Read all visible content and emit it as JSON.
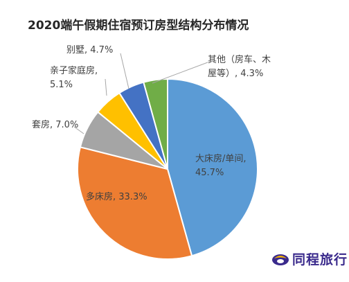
{
  "chart_data": {
    "type": "pie",
    "title": "2020端午假期住宿预订房型结构分布情况",
    "slices": [
      {
        "label": "大床房/单间",
        "value": 45.7,
        "label_lines": [
          "大床房/单间,",
          "45.7%"
        ],
        "color": "#5b9bd5"
      },
      {
        "label": "多床房",
        "value": 33.3,
        "label_lines": [
          "多床房, 33.3%"
        ],
        "color": "#ed7d31"
      },
      {
        "label": "套房",
        "value": 7.0,
        "label_lines": [
          "套房, 7.0%"
        ],
        "color": "#a5a5a5"
      },
      {
        "label": "亲子家庭房",
        "value": 5.1,
        "label_lines": [
          "亲子家庭房,",
          "5.1%"
        ],
        "color": "#ffc000"
      },
      {
        "label": "别墅",
        "value": 4.7,
        "label_lines": [
          "别墅, 4.7%"
        ],
        "color": "#4472c4"
      },
      {
        "label": "其他（房车、木屋等）",
        "value": 4.3,
        "label_lines": [
          "其他（房车、木",
          "屋等）, 4.3%"
        ],
        "color": "#70ad47"
      }
    ]
  },
  "brand": {
    "logo_text": "同程旅行",
    "logo_color": "#3a2a8c",
    "logo_accent": "#f5b400"
  }
}
